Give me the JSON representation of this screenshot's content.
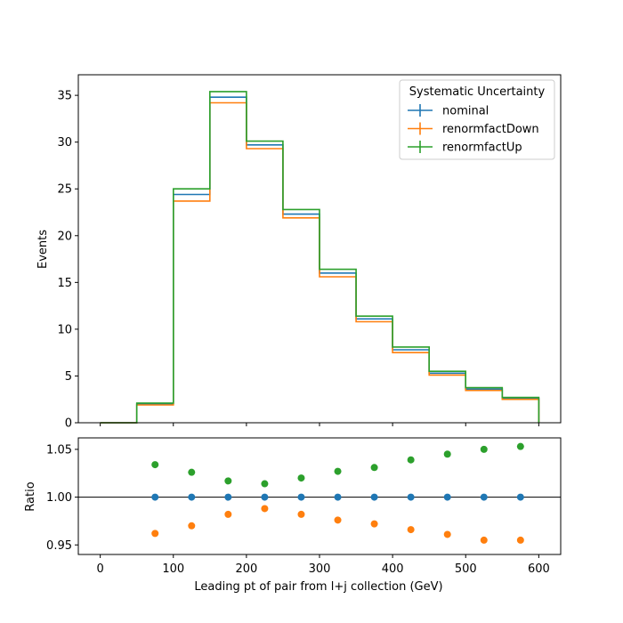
{
  "colors": {
    "nominal": "#1f77b4",
    "renormfactDown": "#ff7f0e",
    "renormfactUp": "#2ca02c"
  },
  "chart_data": [
    {
      "type": "line",
      "style": "step-histogram",
      "xlabel": "",
      "ylabel": "Events",
      "xlim": [
        -30,
        630
      ],
      "ylim": [
        0,
        37.2
      ],
      "xticks": [
        0,
        100,
        200,
        300,
        400,
        500,
        600
      ],
      "yticks": [
        0,
        5,
        10,
        15,
        20,
        25,
        30,
        35
      ],
      "bin_edges": [
        0,
        50,
        100,
        150,
        200,
        250,
        300,
        350,
        400,
        450,
        500,
        550,
        600
      ],
      "legend": {
        "title": "Systematic Uncertainty",
        "position": "top-right"
      },
      "series": [
        {
          "name": "nominal",
          "color": "#1f77b4",
          "values": [
            0,
            2.0,
            24.4,
            34.8,
            29.7,
            22.3,
            16.0,
            11.1,
            7.8,
            5.3,
            3.6,
            2.6
          ]
        },
        {
          "name": "renormfactDown",
          "color": "#ff7f0e",
          "values": [
            0,
            1.9,
            23.7,
            34.2,
            29.3,
            21.9,
            15.6,
            10.8,
            7.5,
            5.1,
            3.45,
            2.5
          ]
        },
        {
          "name": "renormfactUp",
          "color": "#2ca02c",
          "values": [
            0,
            2.1,
            25.0,
            35.4,
            30.1,
            22.8,
            16.4,
            11.4,
            8.1,
            5.5,
            3.75,
            2.7
          ]
        }
      ]
    },
    {
      "type": "scatter",
      "xlabel": "Leading pt of pair from l+j collection (GeV)",
      "ylabel": "Ratio",
      "xlim": [
        -30,
        630
      ],
      "ylim": [
        0.94,
        1.062
      ],
      "xticks": [
        0,
        100,
        200,
        300,
        400,
        500,
        600
      ],
      "yticks": [
        0.95,
        1.0,
        1.05
      ],
      "ytick_labels": [
        "0.95",
        "1.00",
        "1.05"
      ],
      "reference_line": 1.0,
      "x": [
        75,
        125,
        175,
        225,
        275,
        325,
        375,
        425,
        475,
        525,
        575
      ],
      "series": [
        {
          "name": "nominal",
          "color": "#1f77b4",
          "values": [
            1.0,
            1.0,
            1.0,
            1.0,
            1.0,
            1.0,
            1.0,
            1.0,
            1.0,
            1.0,
            1.0
          ]
        },
        {
          "name": "renormfactDown",
          "color": "#ff7f0e",
          "values": [
            0.962,
            0.97,
            0.982,
            0.988,
            0.982,
            0.976,
            0.972,
            0.966,
            0.961,
            0.955,
            0.955
          ]
        },
        {
          "name": "renormfactUp",
          "color": "#2ca02c",
          "values": [
            1.034,
            1.026,
            1.017,
            1.014,
            1.02,
            1.027,
            1.031,
            1.039,
            1.045,
            1.05,
            1.053
          ]
        }
      ]
    }
  ]
}
